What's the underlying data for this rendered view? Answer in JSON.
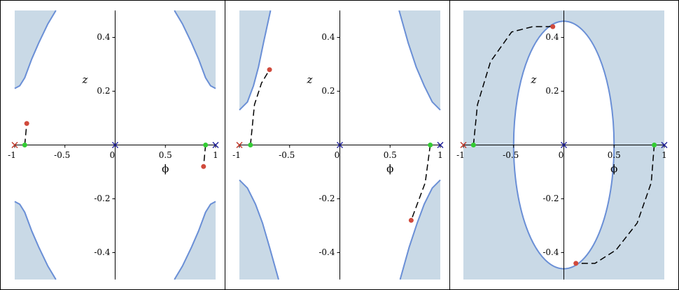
{
  "chart_data": [
    {
      "type": "phase",
      "xlabel": "ϕ",
      "ylabel": "z",
      "xlim": [
        -1,
        1
      ],
      "ylim": [
        -0.5,
        0.5
      ],
      "xticks": [
        -1,
        -0.5,
        0,
        0.5,
        1
      ],
      "yticks": [
        -0.4,
        -0.2,
        0.2,
        0.4
      ],
      "shade_color": "#c9d9e6",
      "boundary_color": "#6a8fd6",
      "regions": [
        {
          "x": [
            -1,
            -0.95,
            -0.9,
            -0.83,
            -0.76,
            -0.67,
            -0.59
          ],
          "y": [
            0.21,
            0.22,
            0.25,
            0.32,
            0.38,
            0.45,
            0.5
          ]
        },
        {
          "x": [
            1,
            0.95,
            0.9,
            0.83,
            0.76,
            0.67,
            0.59
          ],
          "y": [
            0.21,
            0.22,
            0.25,
            0.32,
            0.38,
            0.45,
            0.5
          ]
        },
        {
          "x": [
            -1,
            -0.95,
            -0.9,
            -0.83,
            -0.76,
            -0.67,
            -0.59
          ],
          "y": [
            -0.21,
            -0.22,
            -0.25,
            -0.32,
            -0.38,
            -0.45,
            -0.5
          ]
        },
        {
          "x": [
            1,
            0.95,
            0.9,
            0.83,
            0.76,
            0.67,
            0.59
          ],
          "y": [
            -0.21,
            -0.22,
            -0.25,
            -0.32,
            -0.38,
            -0.45,
            -0.5
          ]
        }
      ],
      "trajectory": {
        "color": "#000000",
        "start_color": "#33cc33",
        "end_color": "#d04a3c",
        "x": [
          -0.9,
          -0.89,
          -0.88,
          null,
          0.9,
          0.89,
          0.88
        ],
        "y": [
          0,
          0.04,
          0.08,
          null,
          0,
          -0.04,
          -0.08
        ]
      },
      "crosses": {
        "x": [
          -1,
          0,
          1
        ],
        "y": [
          0,
          0,
          0
        ],
        "colors": [
          "#c0392b",
          "#1f1f99",
          "#1f1f99"
        ]
      }
    },
    {
      "type": "phase",
      "xlabel": "ϕ",
      "ylabel": "z",
      "xlim": [
        -1,
        1
      ],
      "ylim": [
        -0.5,
        0.5
      ],
      "xticks": [
        -1,
        -0.5,
        0,
        0.5,
        1
      ],
      "yticks": [
        -0.4,
        -0.2,
        0.2,
        0.4
      ],
      "shade_color": "#c9d9e6",
      "boundary_color": "#6a8fd6",
      "regions": [
        {
          "x": [
            -1,
            -0.92,
            -0.86,
            -0.81,
            -0.76,
            -0.69
          ],
          "y": [
            0.13,
            0.16,
            0.22,
            0.29,
            0.38,
            0.5
          ]
        },
        {
          "x": [
            1,
            0.92,
            0.84,
            0.76,
            0.68,
            0.59
          ],
          "y": [
            0.13,
            0.16,
            0.22,
            0.29,
            0.38,
            0.5
          ]
        },
        {
          "x": [
            -1,
            -0.92,
            -0.84,
            -0.77,
            -0.7,
            -0.61
          ],
          "y": [
            -0.13,
            -0.16,
            -0.22,
            -0.29,
            -0.38,
            -0.5
          ]
        },
        {
          "x": [
            1,
            0.92,
            0.84,
            0.77,
            0.69,
            0.6
          ],
          "y": [
            -0.13,
            -0.16,
            -0.22,
            -0.29,
            -0.38,
            -0.5
          ]
        }
      ],
      "trajectory": {
        "color": "#000000",
        "start_color": "#33cc33",
        "end_color": "#d04a3c",
        "x": [
          -0.89,
          -0.85,
          -0.78,
          -0.7,
          null,
          0.9,
          0.85,
          0.78,
          0.71
        ],
        "y": [
          0,
          0.15,
          0.23,
          0.28,
          null,
          0,
          -0.14,
          -0.21,
          -0.28
        ]
      },
      "crosses": {
        "x": [
          -1,
          0,
          1
        ],
        "y": [
          0,
          0,
          0
        ],
        "colors": [
          "#c0392b",
          "#1f1f99",
          "#1f1f99"
        ]
      }
    },
    {
      "type": "phase",
      "xlabel": "ϕ",
      "ylabel": "z",
      "xlim": [
        -1,
        1
      ],
      "ylim": [
        -0.5,
        0.5
      ],
      "xticks": [
        -1,
        -0.5,
        0,
        0.5,
        1
      ],
      "yticks": [
        -0.4,
        -0.2,
        0.2,
        0.4
      ],
      "shade_color": "#c9d9e6",
      "boundary_color": "#6a8fd6",
      "ellipse": {
        "cx": 0,
        "cy": 0,
        "rx": 0.5,
        "ry": 0.46
      },
      "trajectory": {
        "color": "#000000",
        "start_color": "#33cc33",
        "end_color": "#d04a3c",
        "x": [
          -0.9,
          -0.86,
          -0.73,
          -0.52,
          -0.31,
          -0.11,
          null,
          0.9,
          0.87,
          0.73,
          0.52,
          0.31,
          0.12
        ],
        "y": [
          0,
          0.15,
          0.31,
          0.42,
          0.44,
          0.44,
          null,
          0,
          -0.14,
          -0.29,
          -0.39,
          -0.44,
          -0.44
        ]
      },
      "crosses": {
        "x": [
          -1,
          0,
          1
        ],
        "y": [
          0,
          0,
          0
        ],
        "colors": [
          "#c0392b",
          "#1f1f99",
          "#1f1f99"
        ]
      }
    }
  ]
}
